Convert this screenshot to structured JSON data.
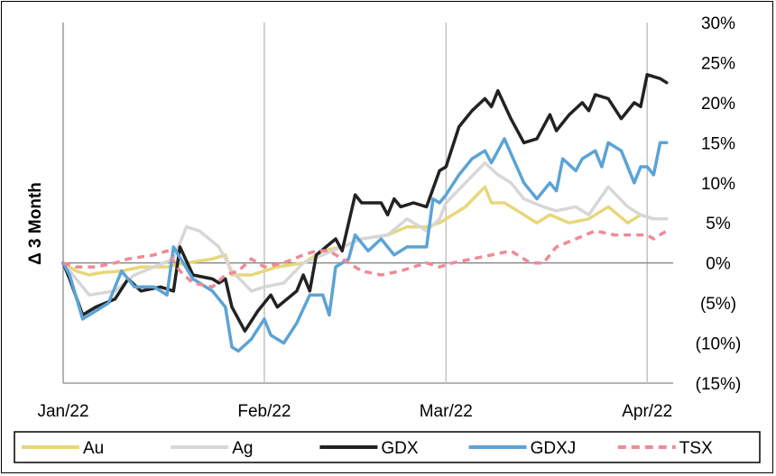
{
  "chart_data": {
    "type": "line",
    "title": "",
    "ylabel": "Δ 3 Month",
    "xlabel": "",
    "ylim": [
      -15,
      30
    ],
    "yticks": [
      30,
      25,
      20,
      15,
      10,
      5,
      0,
      -5,
      -10,
      -15
    ],
    "ytick_labels": [
      "30%",
      "25%",
      "20%",
      "15%",
      "10%",
      "5%",
      "0%",
      "(5%)",
      "(10%)",
      "(15%)"
    ],
    "xlim": [
      "2022-01-01",
      "2022-04-05"
    ],
    "xticks": [
      "2022-01-01",
      "2022-02-01",
      "2022-03-01",
      "2022-04-01"
    ],
    "xtick_labels": [
      "Jan/22",
      "Feb/22",
      "Mar/22",
      "Apr/22"
    ],
    "grid": "vertical",
    "legend": "bottom",
    "series": [
      {
        "name": "Au",
        "color": "#e8d77a",
        "style": "solid",
        "points": [
          [
            "2022-01-01",
            0
          ],
          [
            "2022-01-03",
            -1
          ],
          [
            "2022-01-05",
            -1.5
          ],
          [
            "2022-01-07",
            -1.2
          ],
          [
            "2022-01-10",
            -1
          ],
          [
            "2022-01-13",
            -0.5
          ],
          [
            "2022-01-17",
            -0.5
          ],
          [
            "2022-01-20",
            0
          ],
          [
            "2022-01-24",
            0.5
          ],
          [
            "2022-01-26",
            1
          ],
          [
            "2022-01-27",
            -1.5
          ],
          [
            "2022-01-30",
            -1.5
          ],
          [
            "2022-02-01",
            -1
          ],
          [
            "2022-02-03",
            -0.5
          ],
          [
            "2022-02-07",
            0
          ],
          [
            "2022-02-10",
            1.5
          ],
          [
            "2022-02-13",
            2
          ],
          [
            "2022-02-16",
            3
          ],
          [
            "2022-02-20",
            3.5
          ],
          [
            "2022-02-23",
            4.5
          ],
          [
            "2022-02-26",
            4.5
          ],
          [
            "2022-02-28",
            5
          ],
          [
            "2022-03-01",
            5.5
          ],
          [
            "2022-03-04",
            7
          ],
          [
            "2022-03-07",
            9.5
          ],
          [
            "2022-03-08",
            7.5
          ],
          [
            "2022-03-10",
            7.5
          ],
          [
            "2022-03-13",
            6
          ],
          [
            "2022-03-15",
            5
          ],
          [
            "2022-03-17",
            6
          ],
          [
            "2022-03-20",
            5
          ],
          [
            "2022-03-23",
            5.5
          ],
          [
            "2022-03-26",
            7
          ],
          [
            "2022-03-29",
            5
          ],
          [
            "2022-03-31",
            6
          ],
          [
            "2022-04-02",
            5.5
          ],
          [
            "2022-04-04",
            5.5
          ]
        ]
      },
      {
        "name": "Ag",
        "color": "#d7d7d7",
        "style": "solid",
        "points": [
          [
            "2022-01-01",
            0
          ],
          [
            "2022-01-03",
            -2
          ],
          [
            "2022-01-05",
            -4
          ],
          [
            "2022-01-09",
            -3.5
          ],
          [
            "2022-01-12",
            -1.5
          ],
          [
            "2022-01-15",
            -0.5
          ],
          [
            "2022-01-18",
            0.5
          ],
          [
            "2022-01-20",
            4.5
          ],
          [
            "2022-01-22",
            4
          ],
          [
            "2022-01-25",
            2
          ],
          [
            "2022-01-27",
            -1
          ],
          [
            "2022-01-30",
            -3.5
          ],
          [
            "2022-02-01",
            -3
          ],
          [
            "2022-02-04",
            -2.5
          ],
          [
            "2022-02-07",
            0
          ],
          [
            "2022-02-10",
            1
          ],
          [
            "2022-02-13",
            2
          ],
          [
            "2022-02-16",
            3
          ],
          [
            "2022-02-20",
            3.5
          ],
          [
            "2022-02-23",
            5.5
          ],
          [
            "2022-02-26",
            4
          ],
          [
            "2022-02-28",
            5.5
          ],
          [
            "2022-03-01",
            7.5
          ],
          [
            "2022-03-04",
            10
          ],
          [
            "2022-03-07",
            12.5
          ],
          [
            "2022-03-09",
            11
          ],
          [
            "2022-03-11",
            10
          ],
          [
            "2022-03-13",
            8
          ],
          [
            "2022-03-16",
            7
          ],
          [
            "2022-03-18",
            6.5
          ],
          [
            "2022-03-21",
            7
          ],
          [
            "2022-03-23",
            6
          ],
          [
            "2022-03-26",
            9.5
          ],
          [
            "2022-03-29",
            7
          ],
          [
            "2022-03-31",
            6
          ],
          [
            "2022-04-02",
            5.5
          ],
          [
            "2022-04-04",
            5.5
          ]
        ]
      },
      {
        "name": "GDX",
        "color": "#222222",
        "style": "solid",
        "points": [
          [
            "2022-01-01",
            0
          ],
          [
            "2022-01-02",
            -2
          ],
          [
            "2022-01-04",
            -6.5
          ],
          [
            "2022-01-06",
            -5.5
          ],
          [
            "2022-01-09",
            -4.5
          ],
          [
            "2022-01-11",
            -2
          ],
          [
            "2022-01-13",
            -3.5
          ],
          [
            "2022-01-16",
            -3
          ],
          [
            "2022-01-18",
            -3.5
          ],
          [
            "2022-01-19",
            2
          ],
          [
            "2022-01-21",
            -1.5
          ],
          [
            "2022-01-24",
            -2
          ],
          [
            "2022-01-25",
            -2.5
          ],
          [
            "2022-01-26",
            -2
          ],
          [
            "2022-01-27",
            -5.5
          ],
          [
            "2022-01-29",
            -8.5
          ],
          [
            "2022-01-31",
            -6
          ],
          [
            "2022-02-02",
            -4
          ],
          [
            "2022-02-03",
            -5.5
          ],
          [
            "2022-02-06",
            -3.5
          ],
          [
            "2022-02-07",
            -1.5
          ],
          [
            "2022-02-08",
            -3.5
          ],
          [
            "2022-02-09",
            1
          ],
          [
            "2022-02-12",
            3
          ],
          [
            "2022-02-13",
            1.5
          ],
          [
            "2022-02-15",
            8.5
          ],
          [
            "2022-02-16",
            7.5
          ],
          [
            "2022-02-19",
            7.5
          ],
          [
            "2022-02-20",
            6
          ],
          [
            "2022-02-21",
            8
          ],
          [
            "2022-02-22",
            7
          ],
          [
            "2022-02-24",
            7.5
          ],
          [
            "2022-02-26",
            7
          ],
          [
            "2022-02-28",
            11.5
          ],
          [
            "2022-03-01",
            12
          ],
          [
            "2022-03-03",
            17
          ],
          [
            "2022-03-05",
            19
          ],
          [
            "2022-03-07",
            20.5
          ],
          [
            "2022-03-08",
            19.5
          ],
          [
            "2022-03-09",
            21.5
          ],
          [
            "2022-03-11",
            18
          ],
          [
            "2022-03-13",
            15
          ],
          [
            "2022-03-15",
            15.5
          ],
          [
            "2022-03-17",
            18.5
          ],
          [
            "2022-03-18",
            16.5
          ],
          [
            "2022-03-20",
            18.5
          ],
          [
            "2022-03-22",
            20
          ],
          [
            "2022-03-23",
            19
          ],
          [
            "2022-03-24",
            21
          ],
          [
            "2022-03-26",
            20.5
          ],
          [
            "2022-03-28",
            18
          ],
          [
            "2022-03-30",
            20
          ],
          [
            "2022-03-31",
            19.5
          ],
          [
            "2022-04-01",
            23.5
          ],
          [
            "2022-04-03",
            23
          ],
          [
            "2022-04-04",
            22.5
          ]
        ]
      },
      {
        "name": "GDXJ",
        "color": "#5ba3d6",
        "style": "solid",
        "points": [
          [
            "2022-01-01",
            0
          ],
          [
            "2022-01-02",
            -1.5
          ],
          [
            "2022-01-04",
            -7
          ],
          [
            "2022-01-06",
            -6
          ],
          [
            "2022-01-08",
            -5
          ],
          [
            "2022-01-10",
            -1
          ],
          [
            "2022-01-12",
            -3
          ],
          [
            "2022-01-15",
            -3
          ],
          [
            "2022-01-17",
            -4
          ],
          [
            "2022-01-18",
            2
          ],
          [
            "2022-01-21",
            -2
          ],
          [
            "2022-01-24",
            -3.5
          ],
          [
            "2022-01-26",
            -5.5
          ],
          [
            "2022-01-27",
            -10.5
          ],
          [
            "2022-01-28",
            -11
          ],
          [
            "2022-01-30",
            -9.5
          ],
          [
            "2022-02-01",
            -7
          ],
          [
            "2022-02-02",
            -9
          ],
          [
            "2022-02-04",
            -10
          ],
          [
            "2022-02-06",
            -7.5
          ],
          [
            "2022-02-08",
            -4
          ],
          [
            "2022-02-10",
            -4
          ],
          [
            "2022-02-11",
            -6.5
          ],
          [
            "2022-02-12",
            -0.5
          ],
          [
            "2022-02-14",
            0.5
          ],
          [
            "2022-02-15",
            3.5
          ],
          [
            "2022-02-17",
            1.5
          ],
          [
            "2022-02-19",
            3
          ],
          [
            "2022-02-21",
            1
          ],
          [
            "2022-02-23",
            2
          ],
          [
            "2022-02-26",
            2
          ],
          [
            "2022-02-27",
            8
          ],
          [
            "2022-02-28",
            7.5
          ],
          [
            "2022-03-01",
            8.5
          ],
          [
            "2022-03-03",
            11
          ],
          [
            "2022-03-05",
            13
          ],
          [
            "2022-03-07",
            14
          ],
          [
            "2022-03-08",
            12.5
          ],
          [
            "2022-03-10",
            15.5
          ],
          [
            "2022-03-13",
            10
          ],
          [
            "2022-03-15",
            8
          ],
          [
            "2022-03-17",
            10
          ],
          [
            "2022-03-18",
            9
          ],
          [
            "2022-03-19",
            13
          ],
          [
            "2022-03-21",
            11.5
          ],
          [
            "2022-03-22",
            13
          ],
          [
            "2022-03-24",
            14
          ],
          [
            "2022-03-25",
            12
          ],
          [
            "2022-03-26",
            15
          ],
          [
            "2022-03-28",
            14
          ],
          [
            "2022-03-30",
            10
          ],
          [
            "2022-03-31",
            12
          ],
          [
            "2022-04-01",
            12
          ],
          [
            "2022-04-02",
            11
          ],
          [
            "2022-04-03",
            15
          ],
          [
            "2022-04-04",
            15
          ]
        ]
      },
      {
        "name": "TSX",
        "color": "#f08a96",
        "style": "dashed",
        "points": [
          [
            "2022-01-01",
            0
          ],
          [
            "2022-01-03",
            -0.5
          ],
          [
            "2022-01-06",
            -0.5
          ],
          [
            "2022-01-09",
            0
          ],
          [
            "2022-01-11",
            0.5
          ],
          [
            "2022-01-15",
            1
          ],
          [
            "2022-01-17",
            1.5
          ],
          [
            "2022-01-19",
            -1
          ],
          [
            "2022-01-21",
            -2.5
          ],
          [
            "2022-01-24",
            -3
          ],
          [
            "2022-01-26",
            -1.5
          ],
          [
            "2022-01-28",
            -1
          ],
          [
            "2022-01-30",
            0.5
          ],
          [
            "2022-02-01",
            -0.5
          ],
          [
            "2022-02-04",
            0
          ],
          [
            "2022-02-07",
            1
          ],
          [
            "2022-02-09",
            1.5
          ],
          [
            "2022-02-11",
            1.5
          ],
          [
            "2022-02-13",
            0.5
          ],
          [
            "2022-02-16",
            -1
          ],
          [
            "2022-02-19",
            -1.5
          ],
          [
            "2022-02-22",
            -1
          ],
          [
            "2022-02-24",
            -0.5
          ],
          [
            "2022-02-26",
            0
          ],
          [
            "2022-02-28",
            -0.5
          ],
          [
            "2022-03-02",
            0
          ],
          [
            "2022-03-05",
            0.5
          ],
          [
            "2022-03-08",
            1
          ],
          [
            "2022-03-11",
            1.5
          ],
          [
            "2022-03-14",
            0
          ],
          [
            "2022-03-16",
            0
          ],
          [
            "2022-03-18",
            2
          ],
          [
            "2022-03-21",
            3
          ],
          [
            "2022-03-24",
            4
          ],
          [
            "2022-03-27",
            3.5
          ],
          [
            "2022-03-30",
            3.5
          ],
          [
            "2022-04-01",
            3.5
          ],
          [
            "2022-04-02",
            3
          ],
          [
            "2022-04-04",
            4
          ]
        ]
      }
    ]
  }
}
